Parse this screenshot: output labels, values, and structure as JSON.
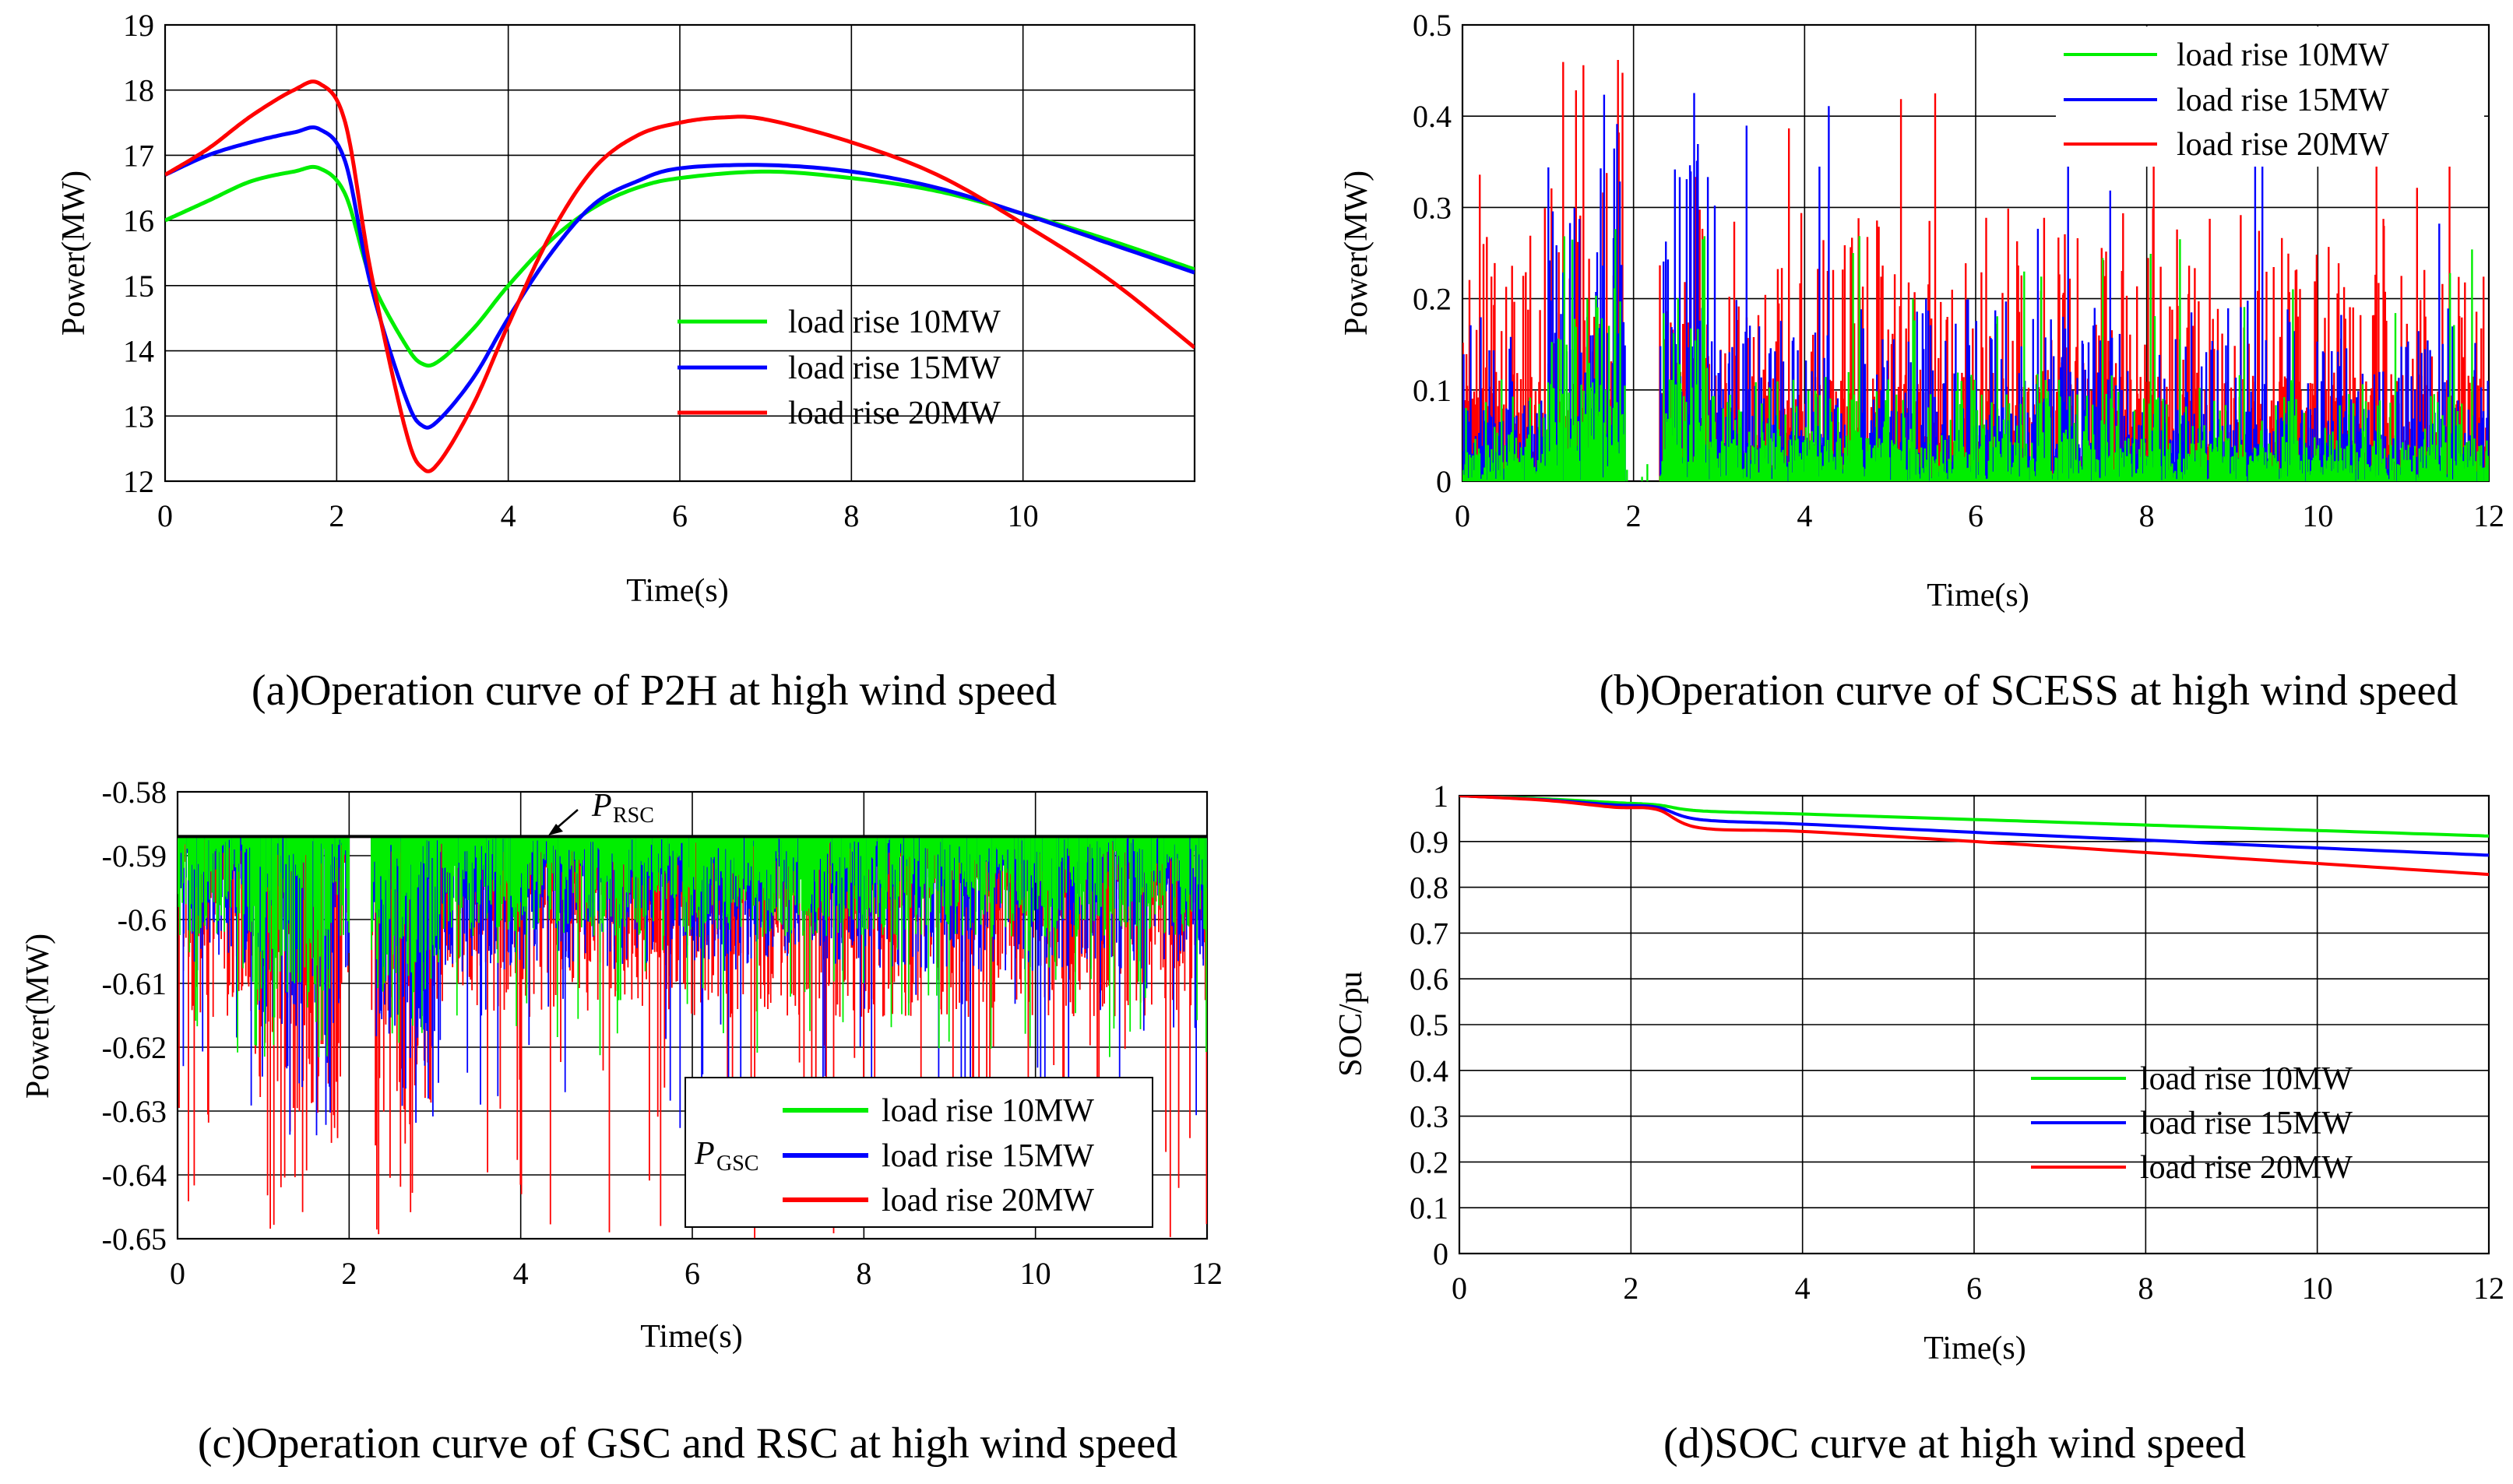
{
  "figure": {
    "colors": {
      "s10": "#00ee00",
      "s15": "#0000ff",
      "s20": "#ff0000",
      "ref": "#000000"
    }
  },
  "chart_data": [
    {
      "id": "a",
      "type": "line",
      "caption": "(a)Operation curve of P2H at high wind speed",
      "xlabel": "Time(s)",
      "ylabel": "Power(MW)",
      "xlim": [
        0,
        12
      ],
      "ylim": [
        12,
        19
      ],
      "xticks": [
        "0",
        "2",
        "4",
        "6",
        "8",
        "10"
      ],
      "yticks": [
        "12",
        "13",
        "14",
        "15",
        "16",
        "17",
        "18",
        "19"
      ],
      "grid": true,
      "legend_position": "lower-right",
      "series": [
        {
          "name": "load rise 10MW",
          "color": "#00ee00",
          "x": [
            0,
            0.5,
            1,
            1.5,
            1.8,
            2.1,
            2.4,
            2.8,
            3.0,
            3.2,
            3.6,
            4.0,
            4.5,
            5.0,
            5.5,
            6.0,
            7.0,
            8.0,
            9.0,
            10.0,
            11.0,
            12.0
          ],
          "y": [
            16.0,
            16.3,
            16.6,
            16.75,
            16.8,
            16.4,
            15.1,
            14.1,
            13.8,
            13.85,
            14.35,
            15.0,
            15.7,
            16.2,
            16.5,
            16.65,
            16.75,
            16.65,
            16.45,
            16.1,
            15.7,
            15.25
          ]
        },
        {
          "name": "load rise 15MW",
          "color": "#0000ff",
          "x": [
            0,
            0.5,
            1,
            1.5,
            1.8,
            2.1,
            2.4,
            2.8,
            3.0,
            3.2,
            3.6,
            4.0,
            4.5,
            5.0,
            5.5,
            6.0,
            7.0,
            8.0,
            9.0,
            10.0,
            11.0,
            12.0
          ],
          "y": [
            16.7,
            17.0,
            17.2,
            17.35,
            17.4,
            16.9,
            15.0,
            13.3,
            12.85,
            12.95,
            13.6,
            14.5,
            15.5,
            16.25,
            16.6,
            16.8,
            16.85,
            16.75,
            16.5,
            16.1,
            15.65,
            15.2
          ]
        },
        {
          "name": "load rise 20MW",
          "color": "#ff0000",
          "x": [
            0,
            0.5,
            1,
            1.5,
            1.8,
            2.1,
            2.4,
            2.8,
            3.0,
            3.2,
            3.6,
            4.0,
            4.5,
            5.0,
            5.5,
            6.0,
            6.5,
            7.0,
            8.0,
            9.0,
            10.0,
            11.0,
            12.0
          ],
          "y": [
            16.7,
            17.1,
            17.6,
            18.0,
            18.1,
            17.5,
            15.2,
            12.8,
            12.2,
            12.3,
            13.2,
            14.4,
            15.8,
            16.8,
            17.3,
            17.5,
            17.58,
            17.55,
            17.2,
            16.7,
            15.95,
            15.1,
            14.05
          ]
        }
      ]
    },
    {
      "id": "b",
      "type": "line",
      "caption": "(b)Operation curve of SCESS at high wind speed",
      "xlabel": "Time(s)",
      "ylabel": "Power(MW)",
      "xlim": [
        0,
        12
      ],
      "ylim": [
        0,
        0.5
      ],
      "xticks": [
        "0",
        "2",
        "4",
        "6",
        "8",
        "10",
        "12"
      ],
      "yticks": [
        "0",
        "0.1",
        "0.2",
        "0.3",
        "0.4",
        "0.5"
      ],
      "grid": true,
      "legend_position": "top-right",
      "series": [
        {
          "name": "load rise 10MW",
          "color": "#00ee00",
          "max_spike": 0.28,
          "typical_max": 0.12,
          "dead_band": [
            1.9,
            2.3
          ]
        },
        {
          "name": "load rise 15MW",
          "color": "#0000ff",
          "max_spike": 0.44,
          "typical_max": 0.2,
          "dead_band": [
            1.9,
            2.3
          ]
        },
        {
          "name": "load rise 20MW",
          "color": "#ff0000",
          "max_spike": 0.47,
          "typical_max": 0.3,
          "dead_band": [
            1.9,
            2.3
          ]
        }
      ]
    },
    {
      "id": "c",
      "type": "line",
      "caption": "(c)Operation curve of GSC and RSC at high wind speed",
      "xlabel": "Time(s)",
      "ylabel": "Power(MW)",
      "xlim": [
        0,
        12
      ],
      "ylim": [
        -0.65,
        -0.58
      ],
      "xticks": [
        "0",
        "2",
        "4",
        "6",
        "8",
        "10",
        "12"
      ],
      "yticks": [
        "-0.58",
        "-0.59",
        "-0.6",
        "-0.61",
        "-0.62",
        "-0.63",
        "-0.64",
        "-0.65"
      ],
      "grid": true,
      "legend_position": "lower-right",
      "annotations": [
        {
          "label": "P",
          "sub": "RSC",
          "x": 4.3,
          "y": -0.587
        },
        {
          "label": "P",
          "sub": "GSC",
          "x": 6.2,
          "y": -0.6405
        }
      ],
      "reference_line": {
        "name": "P_RSC",
        "y": -0.587
      },
      "series": [
        {
          "name": "load rise 10MW",
          "color": "#00ee00",
          "min_dip": -0.622,
          "baseline": -0.587
        },
        {
          "name": "load rise 15MW",
          "color": "#0000ff",
          "min_dip": -0.634,
          "baseline": -0.587
        },
        {
          "name": "load rise 20MW",
          "color": "#ff0000",
          "min_dip": -0.65,
          "baseline": -0.587
        }
      ]
    },
    {
      "id": "d",
      "type": "line",
      "caption": "(d)SOC curve at high wind speed",
      "xlabel": "Time(s)",
      "ylabel": "SOC/pu",
      "xlim": [
        0,
        12
      ],
      "ylim": [
        0,
        1
      ],
      "xticks": [
        "0",
        "2",
        "4",
        "6",
        "8",
        "10",
        "12"
      ],
      "yticks": [
        "0",
        "0.1",
        "0.2",
        "0.3",
        "0.4",
        "0.5",
        "0.6",
        "0.7",
        "0.8",
        "0.9",
        "1"
      ],
      "grid": true,
      "legend_position": "lower-right",
      "series": [
        {
          "name": "load rise 10MW",
          "color": "#00ee00",
          "x": [
            0,
            1,
            1.8,
            2.3,
            2.8,
            4,
            6,
            8,
            10,
            12
          ],
          "y": [
            1.0,
            0.993,
            0.985,
            0.98,
            0.967,
            0.96,
            0.948,
            0.936,
            0.924,
            0.912
          ]
        },
        {
          "name": "load rise 15MW",
          "color": "#0000ff",
          "x": [
            0,
            1,
            1.8,
            2.3,
            2.8,
            4,
            6,
            8,
            10,
            12
          ],
          "y": [
            1.0,
            0.991,
            0.98,
            0.975,
            0.948,
            0.938,
            0.92,
            0.903,
            0.886,
            0.87
          ]
        },
        {
          "name": "load rise 20MW",
          "color": "#ff0000",
          "x": [
            0,
            1,
            1.8,
            2.3,
            2.8,
            4,
            6,
            8,
            10,
            12
          ],
          "y": [
            1.0,
            0.99,
            0.975,
            0.97,
            0.93,
            0.922,
            0.9,
            0.876,
            0.852,
            0.828
          ]
        }
      ]
    }
  ]
}
